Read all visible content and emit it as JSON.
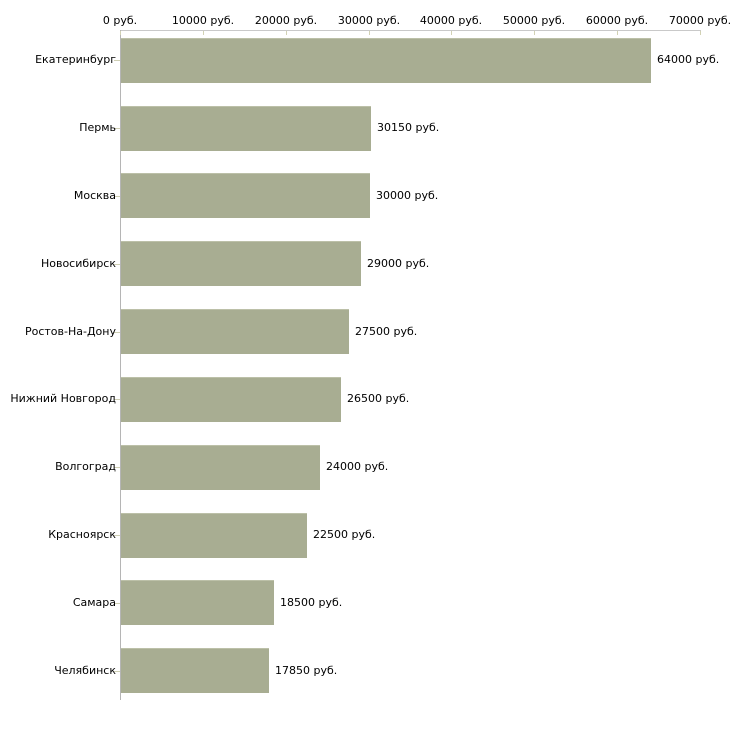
{
  "chart_data": {
    "type": "bar",
    "orientation": "horizontal",
    "title": "",
    "xlabel": "",
    "ylabel": "",
    "categories": [
      "Екатеринбург",
      "Пермь",
      "Москва",
      "Новосибирск",
      "Ростов-На-Дону",
      "Нижний Новгород",
      "Волгоград",
      "Красноярск",
      "Самара",
      "Челябинск"
    ],
    "values": [
      64000,
      30150,
      30000,
      29000,
      27500,
      26500,
      24000,
      22500,
      18500,
      17850
    ],
    "value_labels": [
      "64000 руб.",
      "30150 руб.",
      "30000 руб.",
      "29000 руб.",
      "27500 руб.",
      "26500 руб.",
      "24000 руб.",
      "22500 руб.",
      "18500 руб.",
      "17850 руб."
    ],
    "x_tick_labels": [
      "0 руб.",
      "10000 руб.",
      "20000 руб.",
      "30000 руб.",
      "40000 руб.",
      "50000 руб.",
      "60000 руб.",
      "70000 руб."
    ],
    "x_tick_values": [
      0,
      10000,
      20000,
      30000,
      40000,
      50000,
      60000,
      70000
    ],
    "xlim": [
      0,
      70000
    ],
    "grid": false,
    "legend": "none",
    "colors": {
      "bar_fill": "#a8ad92",
      "bar_top_edge": "#bcc0a8",
      "axis_line_x": "#c9c9c9",
      "axis_line_y": "#b5b5b5",
      "tick": "#d2d2b4",
      "text": "#000000",
      "background": "#ffffff"
    }
  }
}
